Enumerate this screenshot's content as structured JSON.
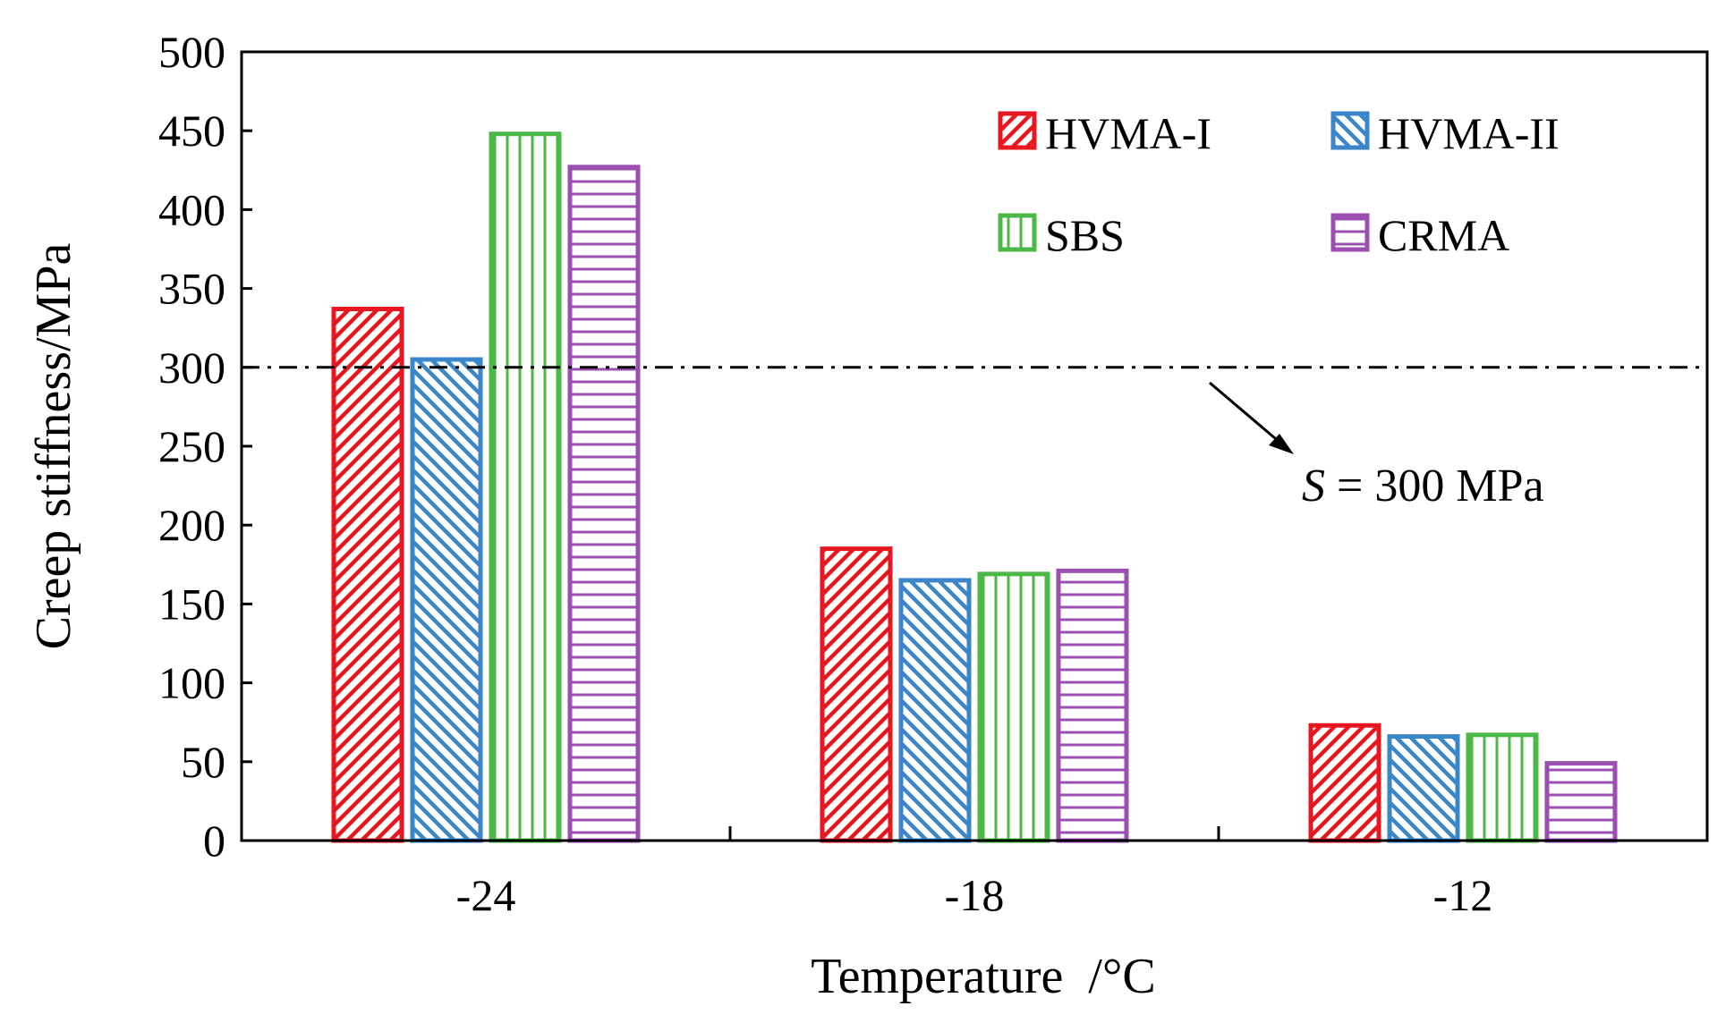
{
  "chart_data": {
    "type": "bar",
    "title": "",
    "xlabel": "Temperature  /°C",
    "ylabel": "Creep stiffness/MPa",
    "ylim": [
      0,
      500
    ],
    "yticks": [
      0,
      50,
      100,
      150,
      200,
      250,
      300,
      350,
      400,
      450,
      500
    ],
    "categories": [
      "-24",
      "-18",
      "-12"
    ],
    "series": [
      {
        "name": "HVMA-I",
        "color": "#e8161e",
        "pattern": "diagonal-up",
        "values": [
          337,
          185,
          73
        ]
      },
      {
        "name": "HVMA-II",
        "color": "#3a86c8",
        "pattern": "diagonal-down",
        "values": [
          305,
          165,
          66
        ]
      },
      {
        "name": "SBS",
        "color": "#4cb848",
        "pattern": "vertical",
        "values": [
          448,
          169,
          67
        ]
      },
      {
        "name": "CRMA",
        "color": "#9b4fb0",
        "pattern": "horizontal",
        "values": [
          427,
          171,
          49
        ]
      }
    ],
    "reference_line": {
      "value": 300,
      "style": "dash-dot"
    },
    "annotation": {
      "symbol": "S",
      "text": " = 300 MPa"
    },
    "legend_position": "top-right",
    "grid": false
  }
}
